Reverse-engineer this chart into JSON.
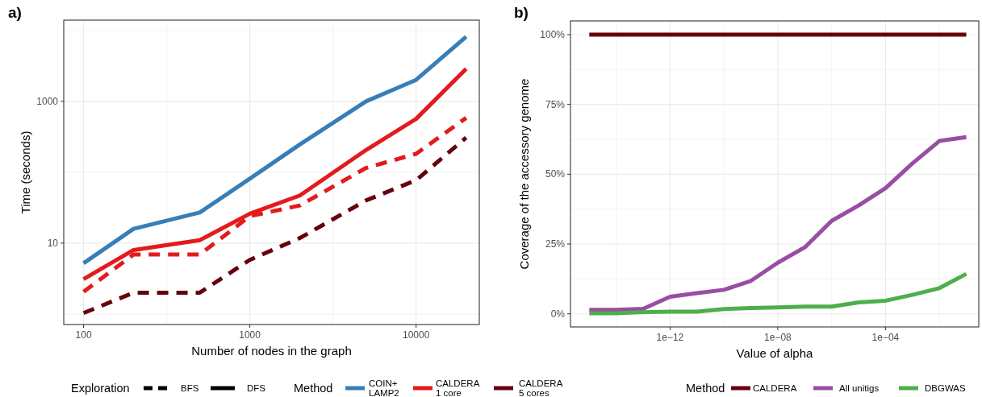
{
  "chart_data": [
    {
      "type": "line",
      "title": "a)",
      "xlabel": "Number of nodes in the graph",
      "ylabel": "Time (seconds)",
      "log": "xy",
      "grid": true,
      "legend": "bottom",
      "legend_title": [
        "Exploration",
        "Method"
      ],
      "annotations": [
        "BFS",
        "DFS"
      ],
      "x": [
        100,
        200,
        500,
        1000,
        2000,
        5000,
        10000,
        20000
      ],
      "xlim": [
        76,
        24000
      ],
      "xticks": [
        100,
        {
          "value": 316.2,
          "label": null
        },
        1000,
        {
          "value": 3162,
          "label": null
        },
        10000
      ],
      "ylim": [
        0.71,
        14000
      ],
      "yticks": [
        {
          "value": 1,
          "label": null
        },
        10,
        {
          "value": 100,
          "label": null
        },
        1000,
        {
          "value": 10000,
          "label": null
        }
      ],
      "series": [
        {
          "name": "COIN+ LAMP2",
          "color": "#377eb8",
          "line_style": "solid",
          "values": [
            5.2,
            15.9,
            27,
            81,
            247,
            1000,
            2010,
            8170
          ]
        },
        {
          "name": "CALDERA 1 core",
          "color": "#e41a1c",
          "line_style": "solid",
          "values": [
            3.1,
            8.0,
            11,
            26,
            47,
            206,
            566,
            2870
          ]
        },
        {
          "color": "#e41a1c",
          "line_style": "dashed",
          "values": [
            2.06,
            6.9,
            6.9,
            24,
            34,
            115,
            182,
            585
          ]
        },
        {
          "name": "CALDERA 5 cores",
          "color": "#67000d",
          "line_style": "dashed",
          "values": [
            1.03,
            2.0,
            2.0,
            5.8,
            11.8,
            40,
            77,
            308
          ]
        }
      ]
    },
    {
      "type": "line",
      "title": "b)",
      "xlabel": "Value of alpha",
      "ylabel": "Coverage of the accessory genome",
      "log": "x",
      "grid": true,
      "legend": "bottom right",
      "legend_title": "Method",
      "x": [
        1e-15,
        1e-14,
        1e-13,
        1e-12,
        1e-11,
        1e-10,
        1e-09,
        1e-08,
        1e-07,
        1e-06,
        1e-05,
        0.0001,
        0.001,
        0.01,
        0.1
      ],
      "xlim": [
        2e-16,
        0.29
      ],
      "xticks": [
        {
          "value": 1e-14,
          "label": null
        },
        {
          "value": 1e-12,
          "label": "1e−12"
        },
        {
          "value": 1e-10,
          "label": null
        },
        {
          "value": 1e-08,
          "label": "1e−08"
        },
        {
          "value": 1e-06,
          "label": null
        },
        {
          "value": 0.0001,
          "label": "1e−04"
        },
        {
          "value": 0.01,
          "label": null
        }
      ],
      "ylim": [
        -4.7,
        104.9
      ],
      "yticks": [
        {
          "value": 0,
          "label": "0%"
        },
        {
          "value": 12.5,
          "label": null
        },
        {
          "value": 25,
          "label": "25%"
        },
        {
          "value": 37.5,
          "label": null
        },
        {
          "value": 50,
          "label": "50%"
        },
        {
          "value": 62.5,
          "label": null
        },
        {
          "value": 75,
          "label": "75%"
        },
        {
          "value": 87.5,
          "label": null
        },
        {
          "value": 100,
          "label": "100%"
        }
      ],
      "series": [
        {
          "name": "CALDERA",
          "color": "#67000d",
          "values": [
            100,
            100,
            100,
            100,
            100,
            100,
            100,
            100,
            100,
            100,
            100,
            100,
            100,
            100,
            100
          ]
        },
        {
          "name": "All unitigs",
          "color": "#984ea3",
          "values": [
            1.4,
            1.4,
            1.8,
            6.1,
            7.4,
            8.6,
            11.8,
            18.3,
            23.8,
            33.3,
            38.8,
            45.0,
            53.9,
            61.9,
            63.3
          ]
        },
        {
          "name": "DBGWAS",
          "color": "#4daf4a",
          "values": [
            0.2,
            0.2,
            0.6,
            0.8,
            0.8,
            1.7,
            2.1,
            2.3,
            2.6,
            2.6,
            4.1,
            4.7,
            6.8,
            9.2,
            14.3
          ]
        }
      ]
    }
  ]
}
